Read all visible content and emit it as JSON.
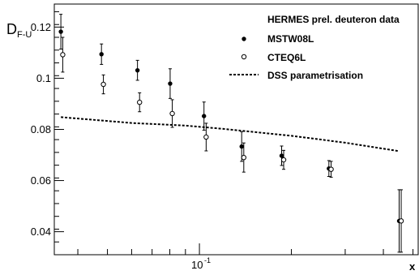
{
  "chart_data": {
    "type": "scatter",
    "title": "",
    "legend_title": "HERMES prel. deuteron data",
    "legend_position": "top-right",
    "xlabel": "x",
    "ylabel": "D",
    "ylabel_sub": "F-U",
    "xscale": "log",
    "xlim": [
      0.0335,
      0.52
    ],
    "ylim": [
      0.031,
      0.129
    ],
    "yticks": [
      0.04,
      0.06,
      0.08,
      0.1,
      0.12
    ],
    "ytick_labels": [
      "0.04",
      "0.06",
      "0.08",
      "0.1",
      "0.12"
    ],
    "xtick_major": [
      0.1
    ],
    "xtick_major_labels": [
      "10"
    ],
    "xtick_major_exponent": "-1",
    "xtick_minor": [
      0.04,
      0.05,
      0.06,
      0.07,
      0.08,
      0.09,
      0.2,
      0.3,
      0.4,
      0.5
    ],
    "grid": false,
    "series": [
      {
        "name": "MSTW08L",
        "marker": "filled-circle",
        "x": [
          0.0352,
          0.0478,
          0.0627,
          0.0802,
          0.1035,
          0.1375,
          0.1858,
          0.2653,
          0.4505
        ],
        "y": [
          0.1182,
          0.1094,
          0.1031,
          0.0979,
          0.0852,
          0.0733,
          0.0697,
          0.0647,
          0.0442
        ],
        "yerr": [
          0.0068,
          0.004,
          0.0039,
          0.0058,
          0.0055,
          0.0058,
          0.0038,
          0.0031,
          0.0122
        ]
      },
      {
        "name": "CTEQ6L",
        "marker": "open-circle",
        "x": [
          0.0357,
          0.0485,
          0.0637,
          0.0815,
          0.1052,
          0.1397,
          0.1887,
          0.2698,
          0.4575
        ],
        "y": [
          0.1092,
          0.0976,
          0.0906,
          0.0862,
          0.077,
          0.069,
          0.0681,
          0.0644,
          0.0442
        ],
        "yerr": [
          0.0068,
          0.0037,
          0.0037,
          0.0054,
          0.0054,
          0.0057,
          0.0037,
          0.0031,
          0.0122
        ]
      },
      {
        "name": "DSS parametrisation",
        "marker": "dashed-line",
        "x": [
          0.0352,
          0.06,
          0.09,
          0.12,
          0.2,
          0.3,
          0.45
        ],
        "y": [
          0.0848,
          0.0825,
          0.0815,
          0.0802,
          0.0775,
          0.0748,
          0.0715
        ]
      }
    ]
  }
}
